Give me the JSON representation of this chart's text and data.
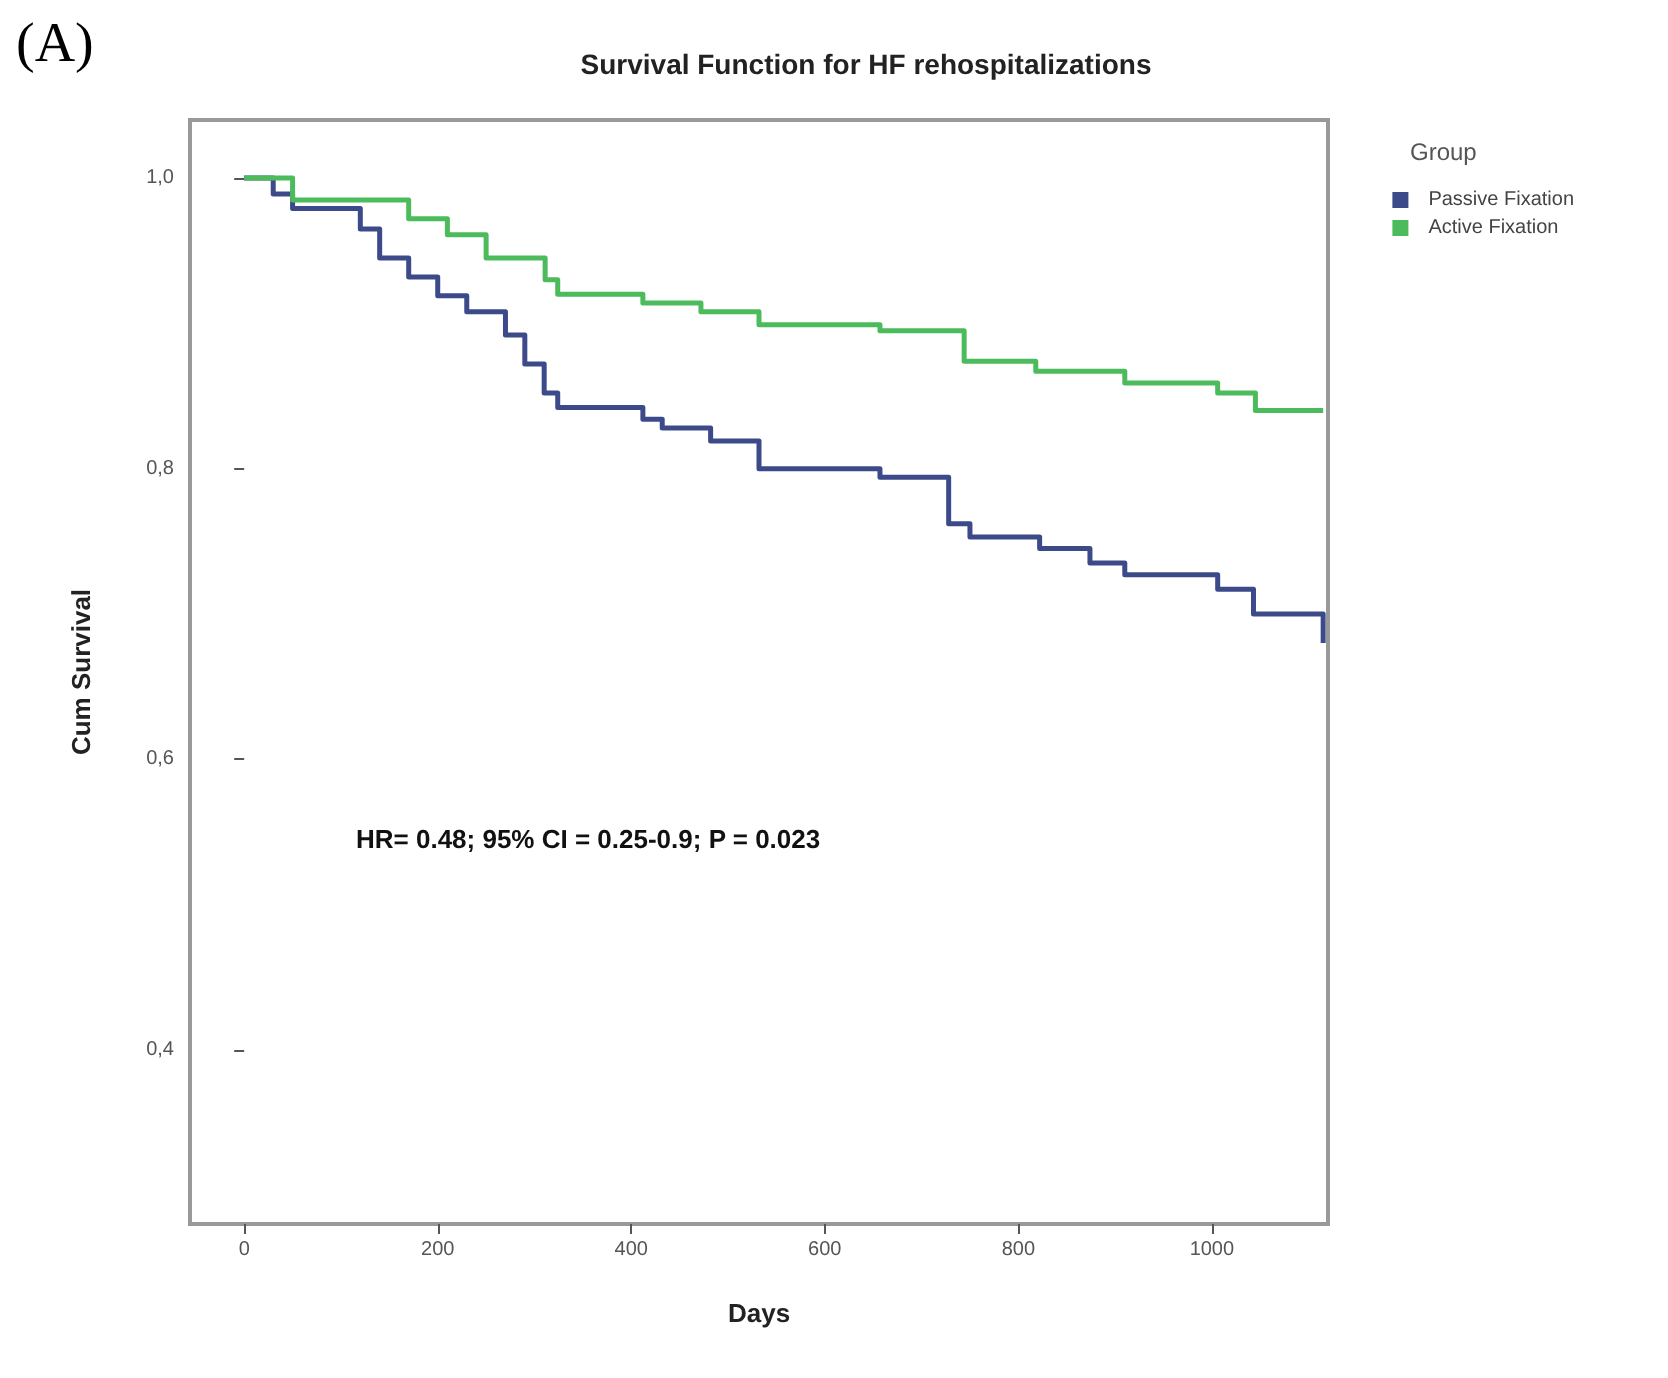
{
  "chart_data": {
    "type": "step",
    "title": "Survival Function for HF rehospitalizations",
    "xlabel": "Days",
    "ylabel": "Cum Survival",
    "legend_title": "Group",
    "legend": "top right",
    "line_style": "solid",
    "grid": false,
    "annotations": [
      "(A)",
      "HR= 0.48; 95% CI = 0.25-0.9; P = 0.023"
    ],
    "xlim": [
      -56,
      1120
    ],
    "xticks": [
      0,
      200,
      400,
      600,
      800,
      1000
    ],
    "ylim": [
      0.28,
      1.04
    ],
    "yticks": [
      {
        "value": 0.4,
        "label": "0,4"
      },
      {
        "value": 0.6,
        "label": "0,6"
      },
      {
        "value": 0.8,
        "label": "0,8"
      },
      {
        "value": 1.0,
        "label": "1,0"
      }
    ],
    "series": [
      {
        "name": "Passive Fixation",
        "color": "#3d4a8a",
        "x": [
          0,
          30,
          50,
          120,
          140,
          170,
          200,
          230,
          270,
          290,
          310,
          324,
          412,
          432,
          482,
          532,
          657,
          728,
          750,
          822,
          874,
          910,
          1006,
          1043,
          1115
        ],
        "values": [
          1.0,
          0.989,
          0.979,
          0.965,
          0.945,
          0.932,
          0.919,
          0.908,
          0.892,
          0.872,
          0.852,
          0.842,
          0.834,
          0.828,
          0.819,
          0.8,
          0.794,
          0.762,
          0.753,
          0.745,
          0.735,
          0.727,
          0.717,
          0.7,
          0.68
        ]
      },
      {
        "name": "Active Fixation",
        "color": "#4cbb5c",
        "x": [
          0,
          50,
          170,
          210,
          250,
          311,
          324,
          412,
          472,
          532,
          657,
          744,
          818,
          910,
          1006,
          1045,
          1115
        ],
        "values": [
          1.0,
          0.985,
          0.972,
          0.961,
          0.945,
          0.93,
          0.92,
          0.914,
          0.908,
          0.899,
          0.895,
          0.874,
          0.867,
          0.859,
          0.852,
          0.84,
          0.84
        ]
      }
    ]
  }
}
